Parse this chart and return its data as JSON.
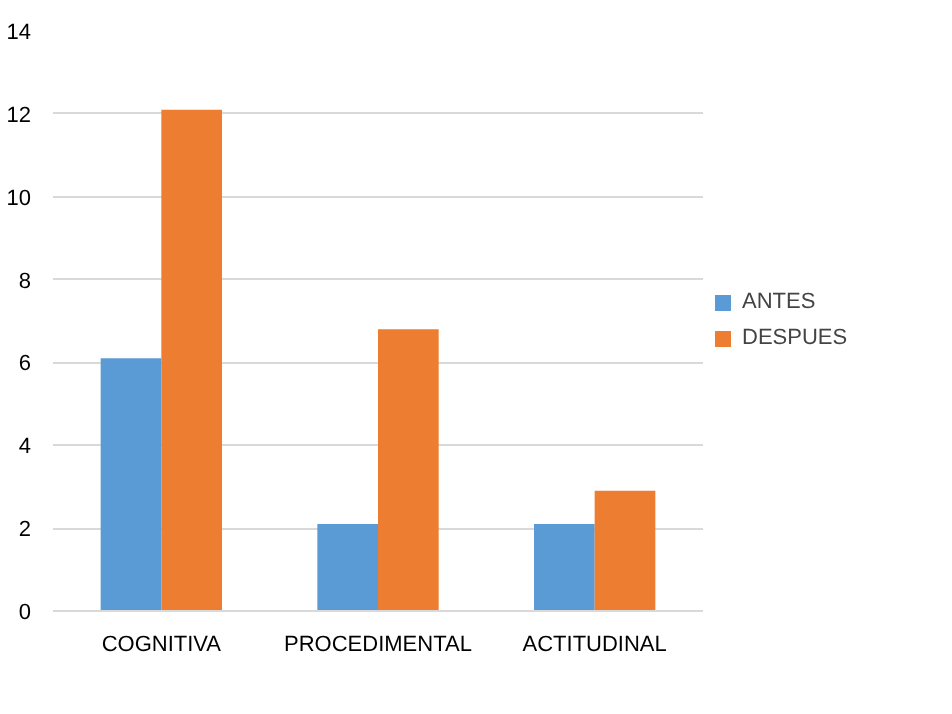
{
  "chart_data": {
    "type": "bar",
    "categories": [
      "COGNITIVA",
      "PROCEDIMENTAL",
      "ACTITUDINAL"
    ],
    "series": [
      {
        "name": "ANTES",
        "color": "#5b9bd5",
        "values": [
          6.1,
          2.1,
          2.1
        ]
      },
      {
        "name": "DESPUES",
        "color": "#ed7d31",
        "values": [
          12.1,
          6.8,
          2.9
        ]
      }
    ],
    "ylim": [
      0,
      14
    ],
    "yticks": [
      0,
      2,
      4,
      6,
      8,
      10,
      12,
      14
    ],
    "grid": "y",
    "legend": "right"
  }
}
